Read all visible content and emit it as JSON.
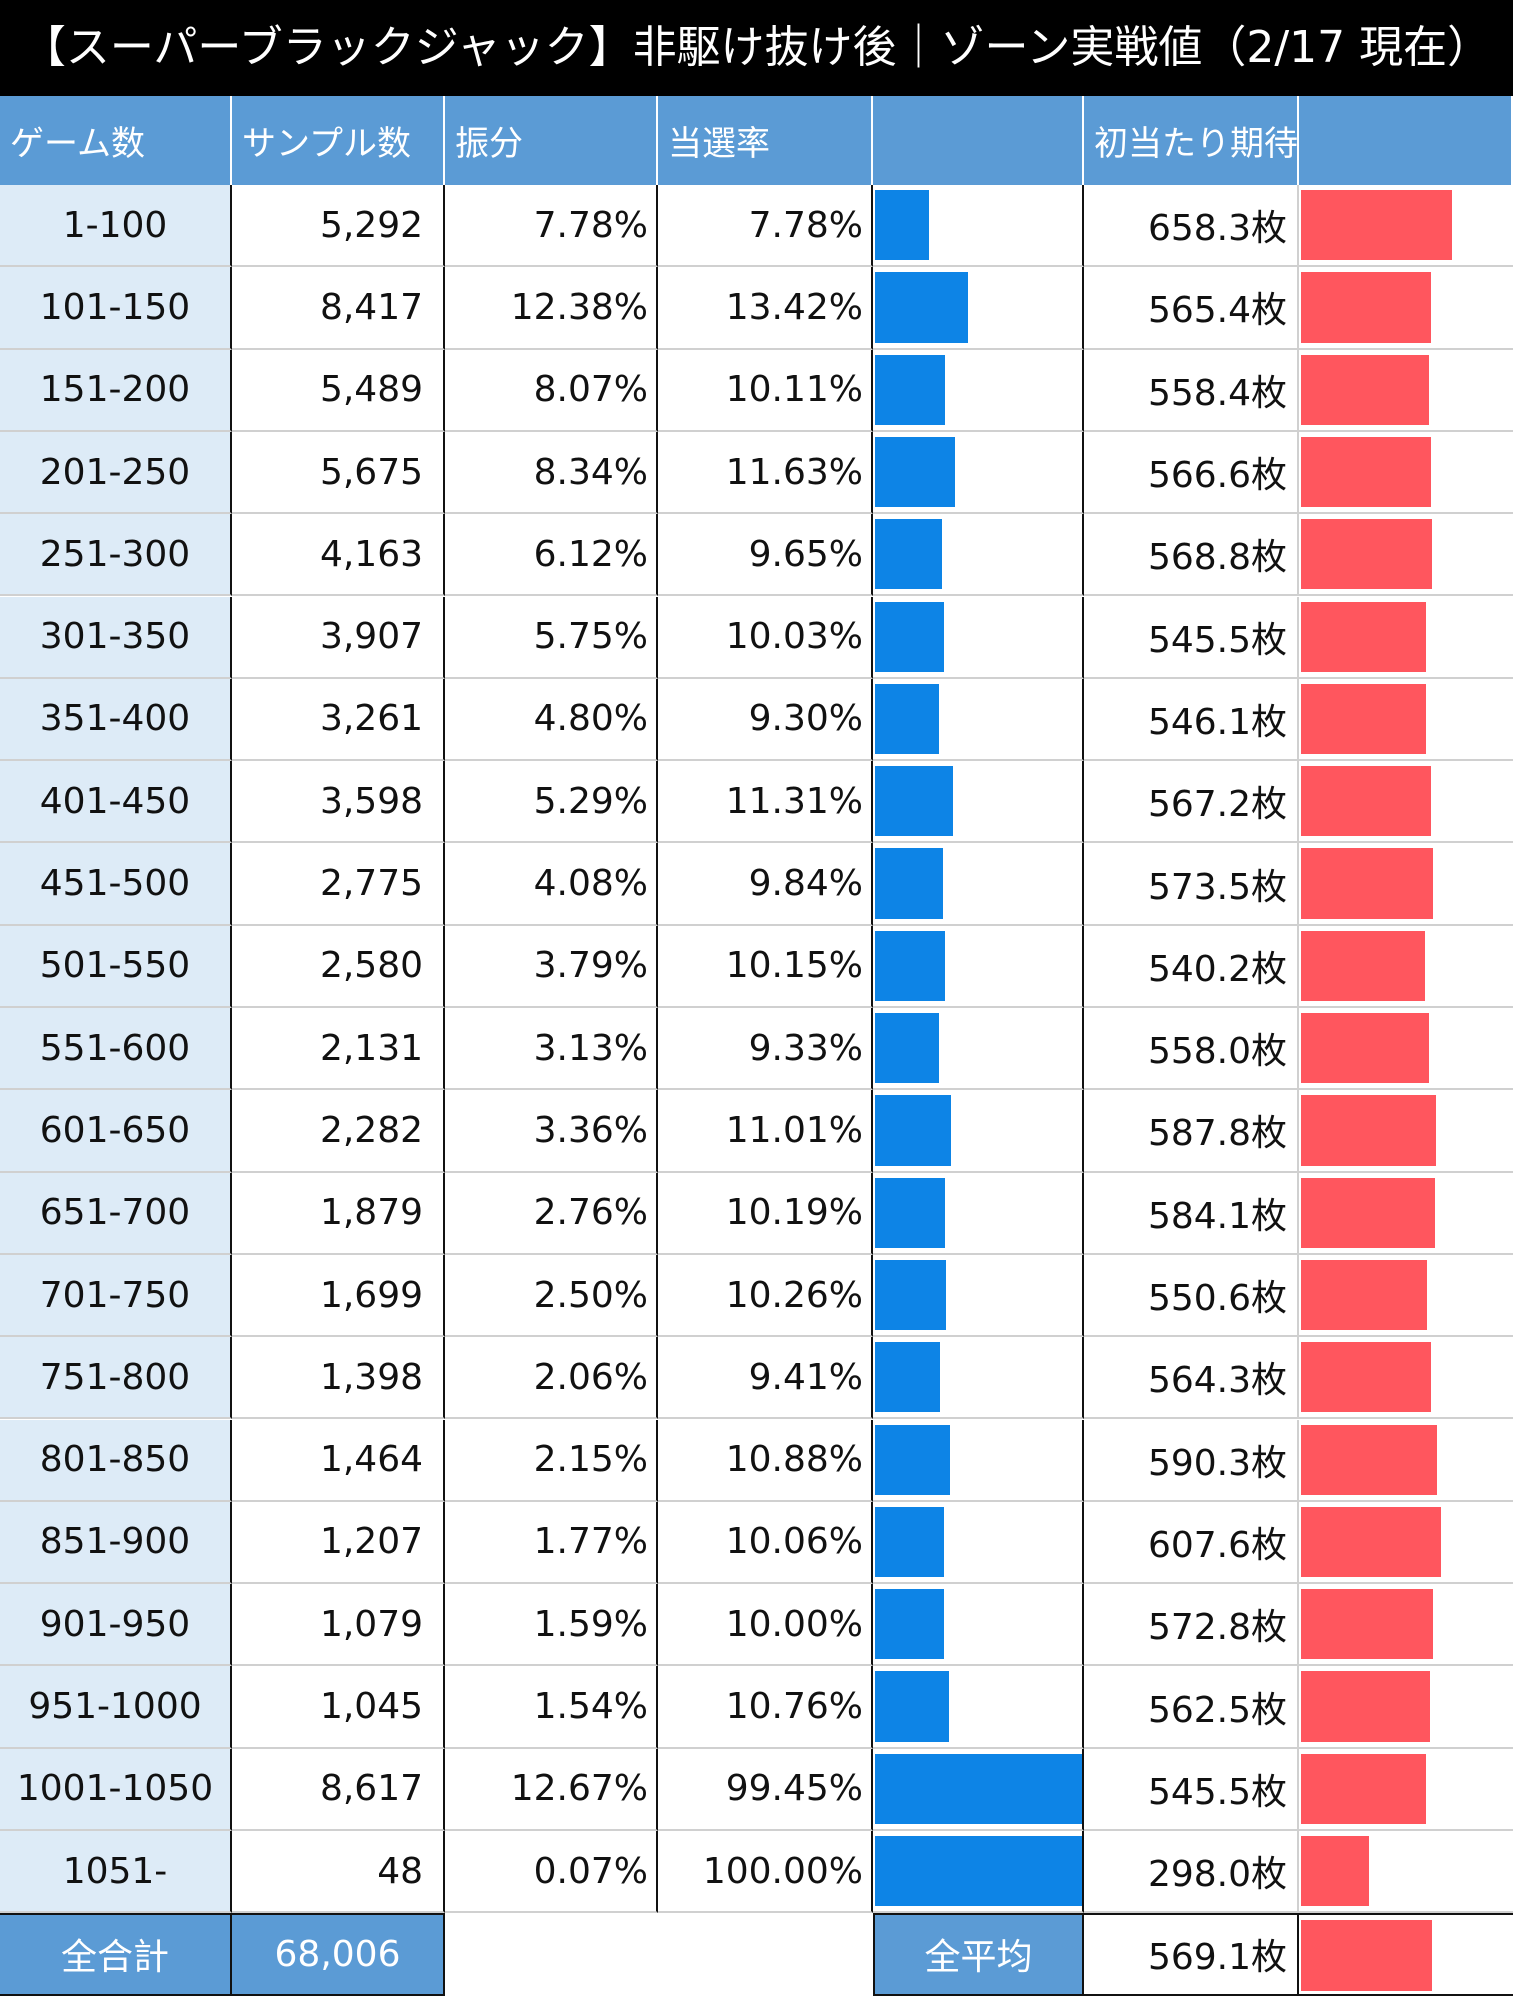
{
  "title": "【スーパーブラックジャック】非駆け抜け後｜ゾーン実戦値（2/17 現在）",
  "table": {
    "header": [
      "ゲーム数",
      "サンプル数",
      "振分",
      "当選率",
      "初当たり期待枚数"
    ],
    "rows": [
      {
        "games": "1-100",
        "samples": "5,292",
        "share": "7.78%",
        "hit_rate": 7.78,
        "hit_rate_label": "7.78%",
        "expected": 658.3,
        "expected_label": "658.3枚"
      },
      {
        "games": "101-150",
        "samples": "8,417",
        "share": "12.38%",
        "hit_rate": 13.42,
        "hit_rate_label": "13.42%",
        "expected": 565.4,
        "expected_label": "565.4枚"
      },
      {
        "games": "151-200",
        "samples": "5,489",
        "share": "8.07%",
        "hit_rate": 10.11,
        "hit_rate_label": "10.11%",
        "expected": 558.4,
        "expected_label": "558.4枚"
      },
      {
        "games": "201-250",
        "samples": "5,675",
        "share": "8.34%",
        "hit_rate": 11.63,
        "hit_rate_label": "11.63%",
        "expected": 566.6,
        "expected_label": "566.6枚"
      },
      {
        "games": "251-300",
        "samples": "4,163",
        "share": "6.12%",
        "hit_rate": 9.65,
        "hit_rate_label": "9.65%",
        "expected": 568.8,
        "expected_label": "568.8枚"
      },
      {
        "games": "301-350",
        "samples": "3,907",
        "share": "5.75%",
        "hit_rate": 10.03,
        "hit_rate_label": "10.03%",
        "expected": 545.5,
        "expected_label": "545.5枚"
      },
      {
        "games": "351-400",
        "samples": "3,261",
        "share": "4.80%",
        "hit_rate": 9.3,
        "hit_rate_label": "9.30%",
        "expected": 546.1,
        "expected_label": "546.1枚"
      },
      {
        "games": "401-450",
        "samples": "3,598",
        "share": "5.29%",
        "hit_rate": 11.31,
        "hit_rate_label": "11.31%",
        "expected": 567.2,
        "expected_label": "567.2枚"
      },
      {
        "games": "451-500",
        "samples": "2,775",
        "share": "4.08%",
        "hit_rate": 9.84,
        "hit_rate_label": "9.84%",
        "expected": 573.5,
        "expected_label": "573.5枚"
      },
      {
        "games": "501-550",
        "samples": "2,580",
        "share": "3.79%",
        "hit_rate": 10.15,
        "hit_rate_label": "10.15%",
        "expected": 540.2,
        "expected_label": "540.2枚"
      },
      {
        "games": "551-600",
        "samples": "2,131",
        "share": "3.13%",
        "hit_rate": 9.33,
        "hit_rate_label": "9.33%",
        "expected": 558,
        "expected_label": "558.0枚"
      },
      {
        "games": "601-650",
        "samples": "2,282",
        "share": "3.36%",
        "hit_rate": 11.01,
        "hit_rate_label": "11.01%",
        "expected": 587.8,
        "expected_label": "587.8枚"
      },
      {
        "games": "651-700",
        "samples": "1,879",
        "share": "2.76%",
        "hit_rate": 10.19,
        "hit_rate_label": "10.19%",
        "expected": 584.1,
        "expected_label": "584.1枚"
      },
      {
        "games": "701-750",
        "samples": "1,699",
        "share": "2.50%",
        "hit_rate": 10.26,
        "hit_rate_label": "10.26%",
        "expected": 550.6,
        "expected_label": "550.6枚"
      },
      {
        "games": "751-800",
        "samples": "1,398",
        "share": "2.06%",
        "hit_rate": 9.41,
        "hit_rate_label": "9.41%",
        "expected": 564.3,
        "expected_label": "564.3枚"
      },
      {
        "games": "801-850",
        "samples": "1,464",
        "share": "2.15%",
        "hit_rate": 10.88,
        "hit_rate_label": "10.88%",
        "expected": 590.3,
        "expected_label": "590.3枚"
      },
      {
        "games": "851-900",
        "samples": "1,207",
        "share": "1.77%",
        "hit_rate": 10.06,
        "hit_rate_label": "10.06%",
        "expected": 607.6,
        "expected_label": "607.6枚"
      },
      {
        "games": "901-950",
        "samples": "1,079",
        "share": "1.59%",
        "hit_rate": 10,
        "hit_rate_label": "10.00%",
        "expected": 572.8,
        "expected_label": "572.8枚"
      },
      {
        "games": "951-1000",
        "samples": "1,045",
        "share": "1.54%",
        "hit_rate": 10.76,
        "hit_rate_label": "10.76%",
        "expected": 562.5,
        "expected_label": "562.5枚"
      },
      {
        "games": "1001-1050",
        "samples": "8,617",
        "share": "12.67%",
        "hit_rate": 99.45,
        "hit_rate_label": "99.45%",
        "expected": 545.5,
        "expected_label": "545.5枚"
      },
      {
        "games": "1051-",
        "samples": "48",
        "share": "0.07%",
        "hit_rate": 100,
        "hit_rate_label": "100.00%",
        "expected": 298,
        "expected_label": "298.0枚"
      }
    ],
    "footer": {
      "total_label": "全合計",
      "total_samples": "68,006",
      "average_label": "全平均",
      "average_expected": 569.1,
      "average_expected_label": "569.1枚"
    }
  }
}
